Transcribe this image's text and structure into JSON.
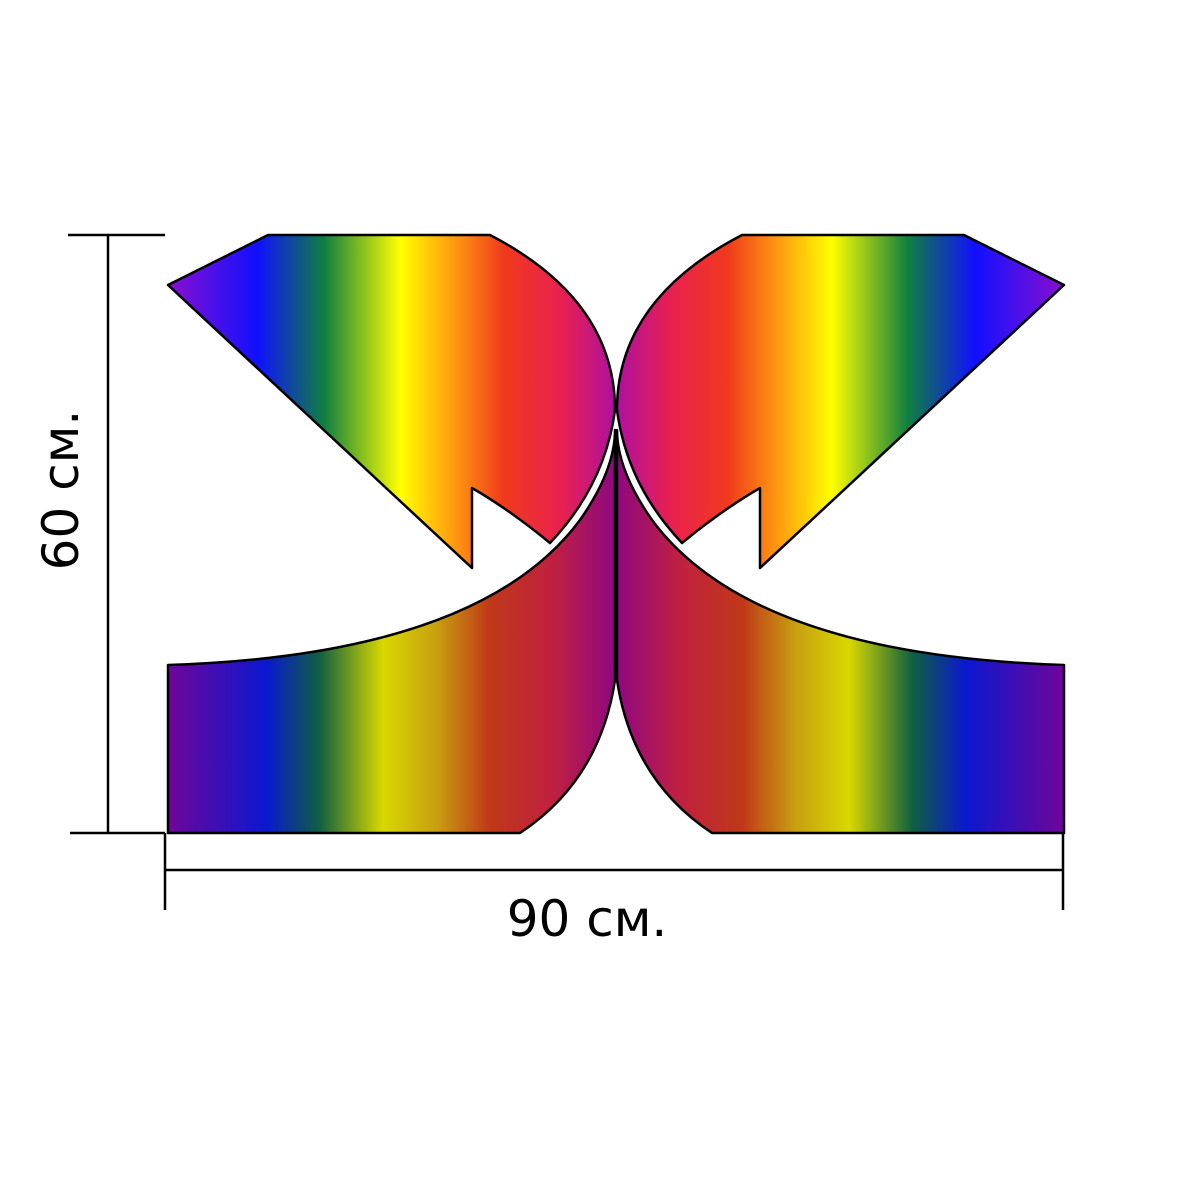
{
  "dimensions": {
    "height_label": "60 см.",
    "width_label": "90 см."
  }
}
